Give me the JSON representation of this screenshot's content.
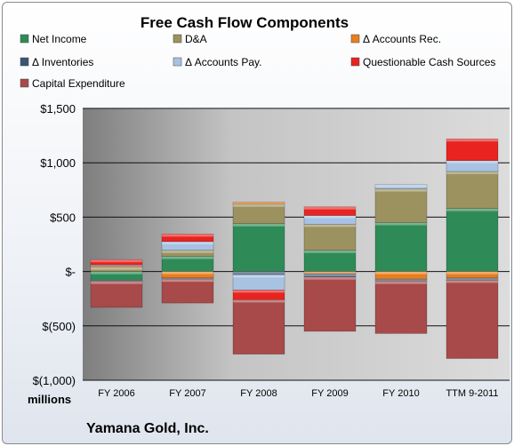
{
  "chart_data": {
    "type": "bar",
    "stacked": true,
    "title": "Free Cash Flow Components",
    "units_label": "millions",
    "company": "Yamana Gold, Inc.",
    "categories": [
      "FY 2006",
      "FY 2007",
      "FY 2008",
      "FY 2009",
      "FY 2010",
      "TTM 9-2011"
    ],
    "ylim": [
      -1000,
      1500
    ],
    "yticks": [
      1500,
      1000,
      500,
      0,
      -500,
      -1000
    ],
    "ytick_labels": [
      "$1,500",
      "$1,000",
      "$500",
      "$-",
      "$(500)",
      "$(1,000)"
    ],
    "grid": true,
    "legend_position": "top",
    "series": [
      {
        "name": "Net Income",
        "color": "#2e8b57",
        "values": [
          -80,
          140,
          440,
          195,
          450,
          580
        ]
      },
      {
        "name": "D&A",
        "color": "#9c9260",
        "values": [
          40,
          55,
          180,
          240,
          310,
          340
        ]
      },
      {
        "name": "Δ Accounts Rec.",
        "color": "#e87e1f",
        "values": [
          10,
          -60,
          20,
          -20,
          -70,
          -60
        ]
      },
      {
        "name": "Δ Inventories",
        "color": "#3a5573",
        "values": [
          -10,
          -10,
          -30,
          -30,
          -20,
          -20
        ]
      },
      {
        "name": "Δ Accounts Pay.",
        "color": "#a8c2e2",
        "values": [
          10,
          80,
          -140,
          80,
          40,
          100
        ]
      },
      {
        "name": "Questionable Cash Sources",
        "color": "#e82320",
        "values": [
          50,
          70,
          -90,
          80,
          0,
          200
        ]
      },
      {
        "name": "Capital Expenditure",
        "color": "#a84a4a",
        "values": [
          -240,
          -220,
          -500,
          -500,
          -480,
          -720
        ]
      }
    ]
  }
}
